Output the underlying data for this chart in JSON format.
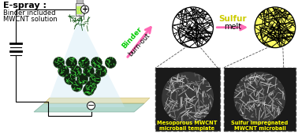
{
  "espray_label": "E-spray :",
  "binder_label": "Binder included\nMWCNT solution",
  "binder_burnout_1": "Binder",
  "binder_burnout_2": "burn-out",
  "sulfur_label": "Sulfur",
  "melt_label": "melt",
  "label_left": "Mesoporous MWCNT\nmicroball template",
  "label_right": "Sulfur impregnated\nMWCNT microball",
  "bg_color": "#ffffff",
  "binder_arrow_color": "#ff69b4",
  "binder_text_color": "#00cc00",
  "sulfur_text_color": "#cccc00",
  "sulfur_arrow_color": "#ff69b4",
  "box_label_color": "#ffff00",
  "figsize": [
    3.78,
    1.7
  ],
  "dpi": 100
}
